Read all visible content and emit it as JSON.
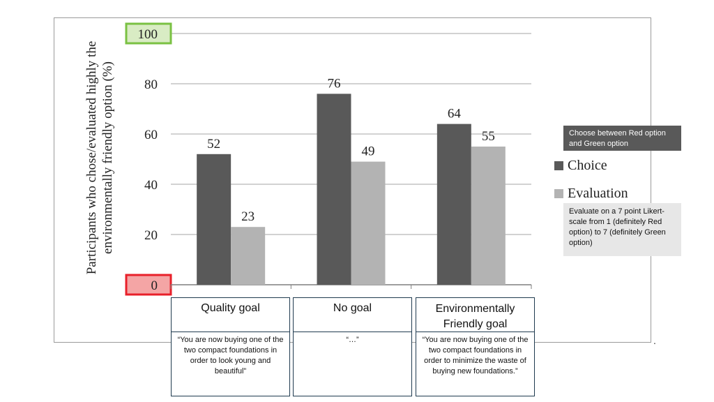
{
  "chart_data": {
    "type": "bar",
    "ylabel": "Participants who chose/evaluated highly the environmentally friendly option (%)",
    "ylim": [
      0,
      100
    ],
    "yticks": [
      "0",
      "20",
      "40",
      "60",
      "80",
      "100"
    ],
    "categories": [
      "Quality goal",
      "No goal",
      "Environmentally Friendly goal"
    ],
    "series": [
      {
        "name": "Choice",
        "values": [
          52,
          76,
          64
        ],
        "color": "#595959"
      },
      {
        "name": "Evaluation",
        "values": [
          23,
          49,
          55
        ],
        "color": "#b3b3b3"
      }
    ],
    "grid": true,
    "legend_position": "right",
    "highlight_colors": {
      "max_tick": "#7ac143",
      "min_tick": "#e8202a"
    }
  },
  "category_descriptions": [
    "“You are now buying one of the two compact foundations in order to look young and beautiful”",
    "“…”",
    "“You are now buying one of the two compact foundations in order to minimize the waste of buying new foundations.”"
  ],
  "legend_notes": {
    "choice": "Choose between Red option and Green option",
    "evaluation": "Evaluate on a 7 point Likert-scale from 1 (definitely Red option) to 7 (definitely Green option)"
  },
  "trailing_mark": "."
}
